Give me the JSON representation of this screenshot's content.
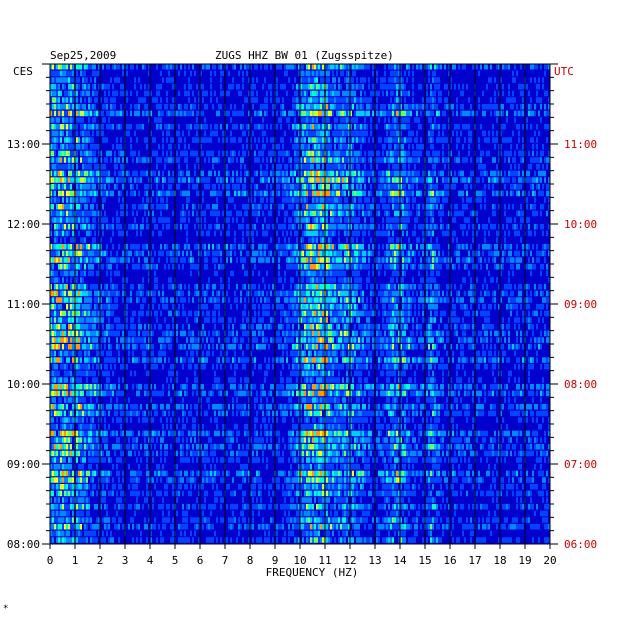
{
  "chart_data": {
    "type": "heatmap",
    "header": {
      "date": "Sep25,2009",
      "station": "ZUGS HHZ BW 01 (Zugsspitze)"
    },
    "left_axis_label": "CES",
    "right_axis_label": "UTC",
    "xlabel": "FREQUENCY (HZ)",
    "xlim": [
      0,
      20
    ],
    "x_ticks": [
      "0",
      "1",
      "2",
      "3",
      "4",
      "5",
      "6",
      "7",
      "8",
      "9",
      "10",
      "11",
      "12",
      "13",
      "14",
      "15",
      "16",
      "17",
      "18",
      "19",
      "20"
    ],
    "left_time_ticks": [
      "13:00",
      "12:00",
      "11:00",
      "10:00",
      "09:00",
      "08:00"
    ],
    "right_time_ticks": [
      "11:00",
      "10:00",
      "09:00",
      "08:00",
      "07:00",
      "06:00"
    ],
    "time_range_hours": 6,
    "rows": 72,
    "colors": {
      "background": "#0000cc",
      "frame": "#000000",
      "grid": "#000000",
      "right_axis": "#cc0000",
      "hot": "#ffff00",
      "mid": "#00ffff"
    },
    "energy_bands": [
      {
        "freq": 0.5,
        "width": 1.2,
        "intensity": 0.75
      },
      {
        "freq": 10.4,
        "width": 0.6,
        "intensity": 0.7
      },
      {
        "freq": 11.0,
        "width": 0.4,
        "intensity": 0.55
      },
      {
        "freq": 12.0,
        "width": 0.6,
        "intensity": 0.5
      },
      {
        "freq": 13.9,
        "width": 0.5,
        "intensity": 0.5
      },
      {
        "freq": 15.3,
        "width": 0.2,
        "intensity": 0.45
      }
    ]
  },
  "corner_mark": "*"
}
